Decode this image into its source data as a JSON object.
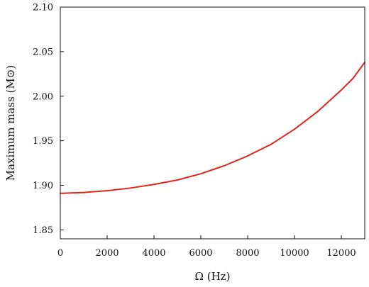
{
  "chart_data": {
    "type": "line",
    "title": "",
    "xlabel": "Ω (Hz)",
    "ylabel": "Maximum mass (M⊙)",
    "xlim": [
      0,
      13000
    ],
    "ylim": [
      1.84,
      2.1
    ],
    "xticks": [
      0,
      2000,
      4000,
      6000,
      8000,
      10000,
      12000
    ],
    "xtick_labels": [
      "0",
      "2000",
      "4000",
      "6000",
      "8000",
      "10000",
      "12000"
    ],
    "yticks": [
      1.85,
      1.9,
      1.95,
      2.0,
      2.05,
      2.1
    ],
    "ytick_labels": [
      "1.85",
      "1.90",
      "1.95",
      "2.00",
      "2.05",
      "2.10"
    ],
    "grid": false,
    "legend": "none",
    "series": [
      {
        "color": "#e0251b",
        "x": [
          0,
          1000,
          2000,
          3000,
          4000,
          5000,
          6000,
          7000,
          8000,
          9000,
          10000,
          11000,
          12000,
          12500,
          13000
        ],
        "y": [
          1.891,
          1.892,
          1.894,
          1.897,
          1.901,
          1.906,
          1.913,
          1.922,
          1.933,
          1.946,
          1.963,
          1.983,
          2.007,
          2.02,
          2.038
        ]
      }
    ]
  }
}
